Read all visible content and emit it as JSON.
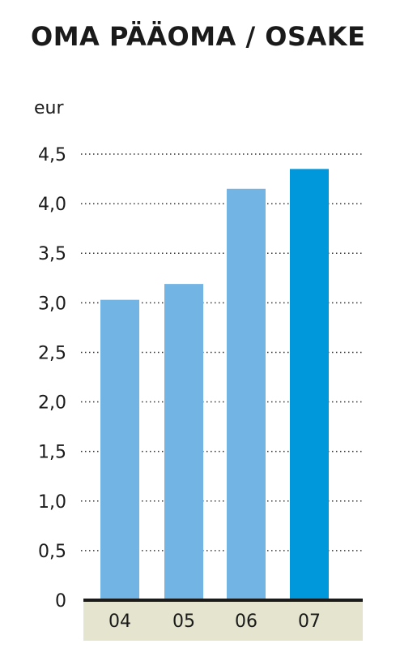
{
  "chart_data": {
    "type": "bar",
    "title": "OMA PÄÄOMA / OSAKE",
    "ylabel": "eur",
    "categories": [
      "04",
      "05",
      "06",
      "07"
    ],
    "values": [
      3.03,
      3.19,
      4.15,
      4.35
    ],
    "ylim": [
      0,
      4.5
    ],
    "yticks": [
      {
        "value": 0,
        "label": "0"
      },
      {
        "value": 0.5,
        "label": "0,5"
      },
      {
        "value": 1.0,
        "label": "1,0"
      },
      {
        "value": 1.5,
        "label": "1,5"
      },
      {
        "value": 2.0,
        "label": "2,0"
      },
      {
        "value": 2.5,
        "label": "2,5"
      },
      {
        "value": 3.0,
        "label": "3,0"
      },
      {
        "value": 3.5,
        "label": "3,5"
      },
      {
        "value": 4.0,
        "label": "4,0"
      },
      {
        "value": 4.5,
        "label": "4,5"
      }
    ],
    "grid": true,
    "colors": {
      "bar": "#72b4e4",
      "highlight_bar": "#0097db",
      "axis_band": "#e4e4cf",
      "grid": "#333333"
    },
    "highlight_index": 3
  }
}
